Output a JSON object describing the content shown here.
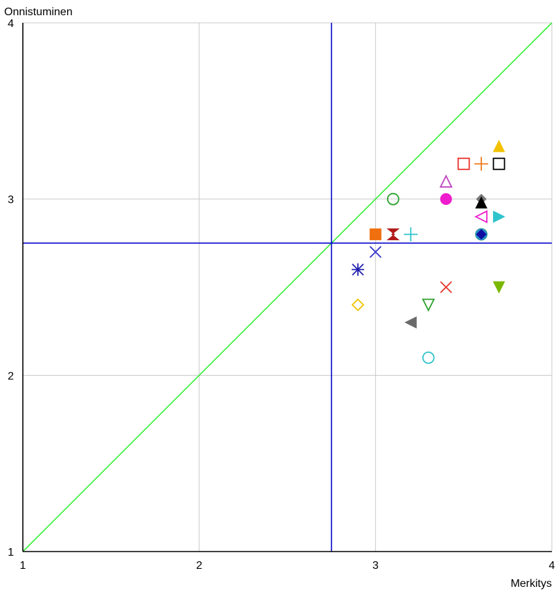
{
  "chart_data": {
    "type": "scatter",
    "xlabel": "Merkitys",
    "ylabel": "Onnistuminen",
    "xlim": [
      1,
      4
    ],
    "ylim": [
      1,
      4
    ],
    "xticks": [
      1,
      2,
      3,
      4
    ],
    "yticks": [
      1,
      2,
      3,
      4
    ],
    "grid": true,
    "reference_lines": {
      "vertical_x": 2.75,
      "horizontal_y": 2.75,
      "diagonal": true,
      "reference_color": "#0000cc",
      "diagonal_color": "#33ee33"
    },
    "points": [
      {
        "x": 3.7,
        "y": 3.3,
        "marker": "triangle-up-filled",
        "color": "#f2c200"
      },
      {
        "x": 3.5,
        "y": 3.2,
        "marker": "square-open",
        "color": "#e8322a"
      },
      {
        "x": 3.6,
        "y": 3.2,
        "marker": "plus",
        "color": "#f07a1a"
      },
      {
        "x": 3.7,
        "y": 3.2,
        "marker": "square-open",
        "color": "#000000"
      },
      {
        "x": 3.4,
        "y": 3.1,
        "marker": "triangle-up-open",
        "color": "#c040c0"
      },
      {
        "x": 3.1,
        "y": 3.0,
        "marker": "circle-open",
        "color": "#2aa02a"
      },
      {
        "x": 3.4,
        "y": 3.0,
        "marker": "circle-filled",
        "color": "#ee1ccc"
      },
      {
        "x": 3.6,
        "y": 3.0,
        "marker": "diamond-filled",
        "color": "#7a7a7a"
      },
      {
        "x": 3.6,
        "y": 2.98,
        "marker": "triangle-up-filled",
        "color": "#000000"
      },
      {
        "x": 3.6,
        "y": 2.9,
        "marker": "triangle-left-open",
        "color": "#ee1ccc"
      },
      {
        "x": 3.7,
        "y": 2.9,
        "marker": "triangle-right-filled",
        "color": "#2ec4cc"
      },
      {
        "x": 3.0,
        "y": 2.8,
        "marker": "square-filled",
        "color": "#f07010"
      },
      {
        "x": 3.1,
        "y": 2.8,
        "marker": "bowtie-filled",
        "color": "#b01818"
      },
      {
        "x": 3.2,
        "y": 2.8,
        "marker": "plus",
        "color": "#2ec4cc"
      },
      {
        "x": 3.6,
        "y": 2.8,
        "marker": "circle-open",
        "color": "#2aa02a"
      },
      {
        "x": 3.6,
        "y": 2.8,
        "marker": "circle-filled",
        "color": "#2a90d0"
      },
      {
        "x": 3.6,
        "y": 2.8,
        "marker": "diamond-filled",
        "color": "#1010a0"
      },
      {
        "x": 3.0,
        "y": 2.7,
        "marker": "cross",
        "color": "#3a3acc"
      },
      {
        "x": 2.9,
        "y": 2.6,
        "marker": "asterisk",
        "color": "#2020b0"
      },
      {
        "x": 3.4,
        "y": 2.5,
        "marker": "cross",
        "color": "#e8322a"
      },
      {
        "x": 3.7,
        "y": 2.5,
        "marker": "triangle-down-filled",
        "color": "#7ab800"
      },
      {
        "x": 2.9,
        "y": 2.4,
        "marker": "diamond-open",
        "color": "#f2c200"
      },
      {
        "x": 3.3,
        "y": 2.4,
        "marker": "triangle-down-open",
        "color": "#2aa02a"
      },
      {
        "x": 3.2,
        "y": 2.3,
        "marker": "triangle-left-filled",
        "color": "#6a6a6a"
      },
      {
        "x": 3.3,
        "y": 2.1,
        "marker": "circle-open",
        "color": "#2ec4cc"
      }
    ]
  }
}
